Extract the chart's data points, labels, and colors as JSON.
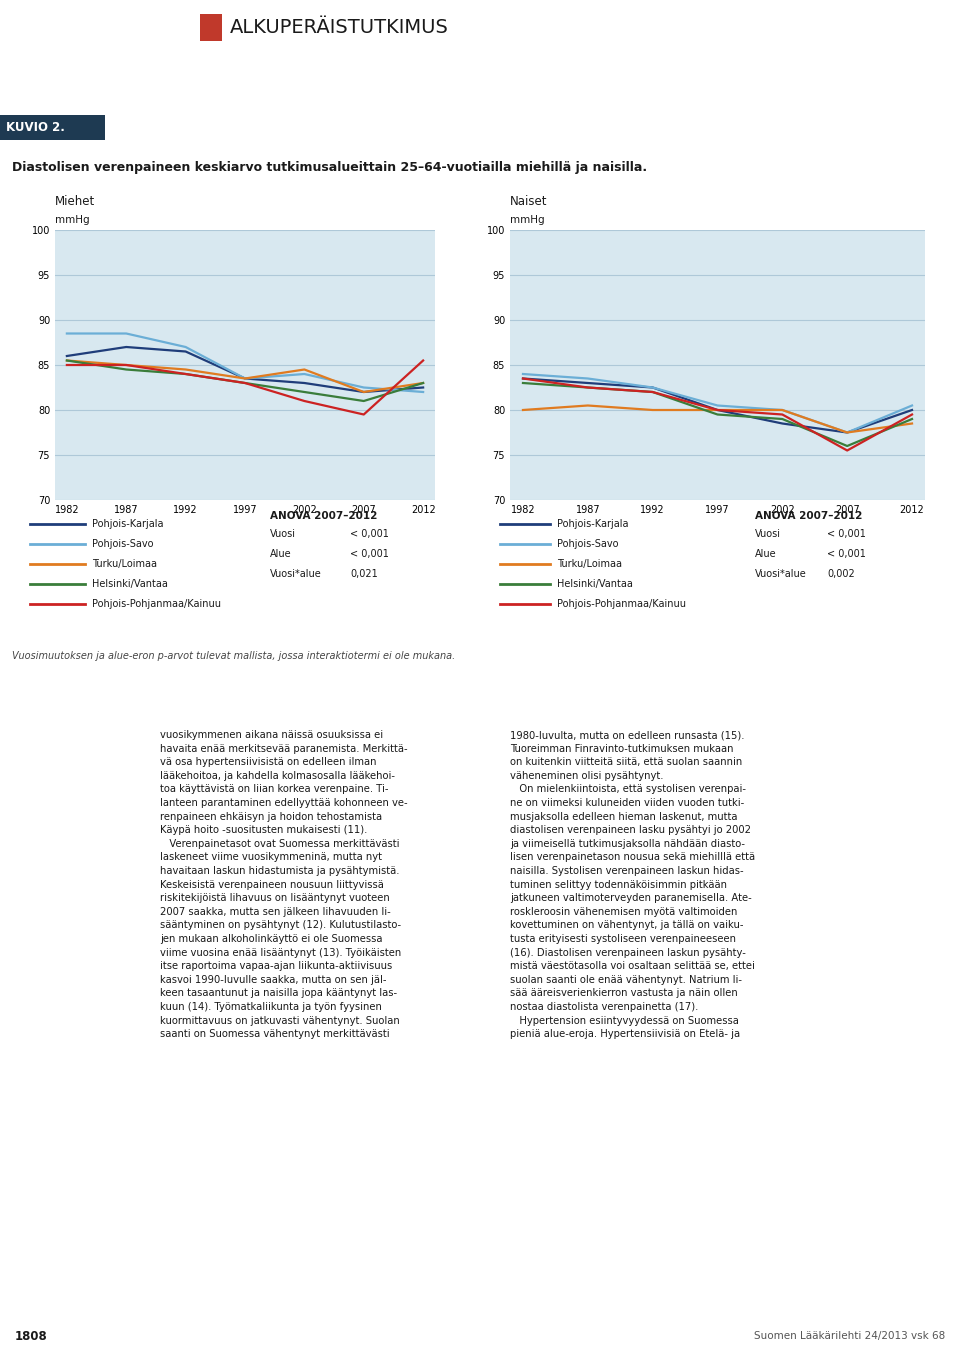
{
  "title_box_label": "KUVIO 2.",
  "title_box_bg": "#5aabca",
  "kuvio_bg": "#1e3a52",
  "subtitle": "Diastolisen verenpaineen keskiarvo tutkimusalueittain 25–64-vuotiailla miehillä ja naisilla.",
  "chart_bg": "#d8e8f0",
  "page_bg": "#ffffff",
  "section_label": "ALKUPERÄISTUTKIMUS",
  "section_red": "#c0392b",
  "years": [
    1982,
    1987,
    1992,
    1997,
    2002,
    2007,
    2012
  ],
  "ylim": [
    70,
    100
  ],
  "yticks": [
    70,
    75,
    80,
    85,
    90,
    95,
    100
  ],
  "men_label": "Miehet",
  "women_label": "Naiset",
  "yaxis_label": "mmHg",
  "series_colors": {
    "Pohjois-Karjala": "#1f3d7a",
    "Pohjois-Savo": "#6baed6",
    "Turku/Loimaa": "#e07b20",
    "Helsinki/Vantaa": "#3a7d3a",
    "Pohjois-Pohjanmaa/Kainuu": "#cc2222"
  },
  "men_data": {
    "Pohjois-Karjala": [
      86.0,
      87.0,
      86.5,
      83.5,
      83.0,
      82.0,
      82.5
    ],
    "Pohjois-Savo": [
      88.5,
      88.5,
      87.0,
      83.5,
      84.0,
      82.5,
      82.0
    ],
    "Turku/Loimaa": [
      85.5,
      85.0,
      84.5,
      83.5,
      84.5,
      82.0,
      83.0
    ],
    "Helsinki/Vantaa": [
      85.5,
      84.5,
      84.0,
      83.0,
      82.0,
      81.0,
      83.0
    ],
    "Pohjois-Pohjanmaa/Kainuu": [
      85.0,
      85.0,
      84.0,
      83.0,
      81.0,
      79.5,
      85.5
    ]
  },
  "women_data": {
    "Pohjois-Karjala": [
      83.5,
      83.0,
      82.5,
      80.0,
      78.5,
      77.5,
      80.0
    ],
    "Pohjois-Savo": [
      84.0,
      83.5,
      82.5,
      80.5,
      80.0,
      77.5,
      80.5
    ],
    "Turku/Loimaa": [
      80.0,
      80.5,
      80.0,
      80.0,
      80.0,
      77.5,
      78.5
    ],
    "Helsinki/Vantaa": [
      83.0,
      82.5,
      82.0,
      79.5,
      79.0,
      76.0,
      79.0
    ],
    "Pohjois-Pohjanmaa/Kainuu": [
      83.5,
      82.5,
      82.0,
      80.0,
      79.5,
      75.5,
      79.5
    ]
  },
  "anova_men": {
    "title": "ANOVA 2007–2012",
    "rows": [
      [
        "Vuosi",
        "< 0,001"
      ],
      [
        "Alue",
        "< 0,001"
      ],
      [
        "Vuosi*alue",
        "0,021"
      ]
    ]
  },
  "anova_women": {
    "title": "ANOVA 2007–2012",
    "rows": [
      [
        "Vuosi",
        "< 0,001"
      ],
      [
        "Alue",
        "< 0,001"
      ],
      [
        "Vuosi*alue",
        "0,002"
      ]
    ]
  },
  "footnote": "Vuosimuutoksen ja alue-eron p-arvot tulevat mallista, jossa interaktiotermi ei ole mukana.",
  "body_left": [
    "vuosikymmenen aikana näissä osuuksissa ei",
    "havaita enää merkitsevää paranemista. Merkittä-",
    "vä osa hypertensiivisistä on edelleen ilman",
    "lääkehoitoa, ja kahdella kolmasosalla lääkehoi-",
    "toa käyttävistä on liian korkea verenpaine. Ti-",
    "lanteen parantaminen edellyyttää kohonneen ve-",
    "renpaineen ehkäisyn ja hoidon tehostamista",
    "Käypä hoito -suositusten mukaisesti (11).",
    "   Verenpainetasot ovat Suomessa merkittävästi",
    "laskeneet viime vuosikymmeninä, mutta nyt",
    "havaitaan laskun hidastumista ja pysähtymistä.",
    "Keskeisistä verenpaineen nousuun liittyvissä",
    "riskitekijöistä lihavuus on lisääntynyt vuoteen",
    "2007 saakka, mutta sen jälkeen lihavuuden li-",
    "sääntyminen on pysähtynyt (12). Kulutustilasto-",
    "jen mukaan alkoholinkäyttö ei ole Suomessa",
    "viime vuosina enää lisääntynyt (13). Työikäisten",
    "itse raportoima vapaa-ajan liikunta-aktiivisuus",
    "kasvoi 1990-luvulle saakka, mutta on sen jäl-",
    "keen tasaantunut ja naisilla jopa kääntynyt las-",
    "kuun (14). Työmatkaliikunta ja työn fyysinen",
    "kuormittavuus on jatkuvasti vähentynyt. Suolan",
    "saanti on Suomessa vähentynyt merkittävästi"
  ],
  "body_right": [
    "1980-luvulta, mutta on edelleen runsasta (15).",
    "Tuoreimman Finravinto-tutkimuksen mukaan",
    "on kuitenkin viitteitä siitä, että suolan saannin",
    "väheneminen olisi pysähtynyt.",
    "   On mielenkiintoista, että systolisen verenpai-",
    "ne on viimeksi kuluneiden viiden vuoden tutki-",
    "musjaksolla edelleen hieman laskenut, mutta",
    "diastolisen verenpaineen lasku pysähtyi jo 2002",
    "ja viimeisellä tutkimusjaksolla nähdään diasto-",
    "lisen verenpainetason nousua sekä miehilllä että",
    "naisilla. Systolisen verenpaineen laskun hidas-",
    "tuminen selittyy todennäköisimmin pitkään",
    "jatkuneen valtimoterveyden paranemisella. Ate-",
    "roskleroosin vähenemisen myötä valtimoiden",
    "kovettuminen on vähentynyt, ja tällä on vaiku-",
    "tusta erityisesti systoliseen verenpaineeseen",
    "(16). Diastolisen verenpaineen laskun pysähty-",
    "mistä väestötasolla voi osaltaan selittää se, ettei",
    "suolan saanti ole enää vähentynyt. Natrium li-",
    "sää ääreisverienkierron vastusta ja näin ollen",
    "nostaa diastolista verenpainetta (17).",
    "   Hypertension esiintyvyydessä on Suomessa",
    "pieniä alue-eroja. Hypertensiivisiä on Etelä- ja"
  ],
  "page_number": "1808",
  "journal": "Suomen Lääkärilehti 24/2013 vsk 68",
  "gridline_color": "#aec8d8"
}
